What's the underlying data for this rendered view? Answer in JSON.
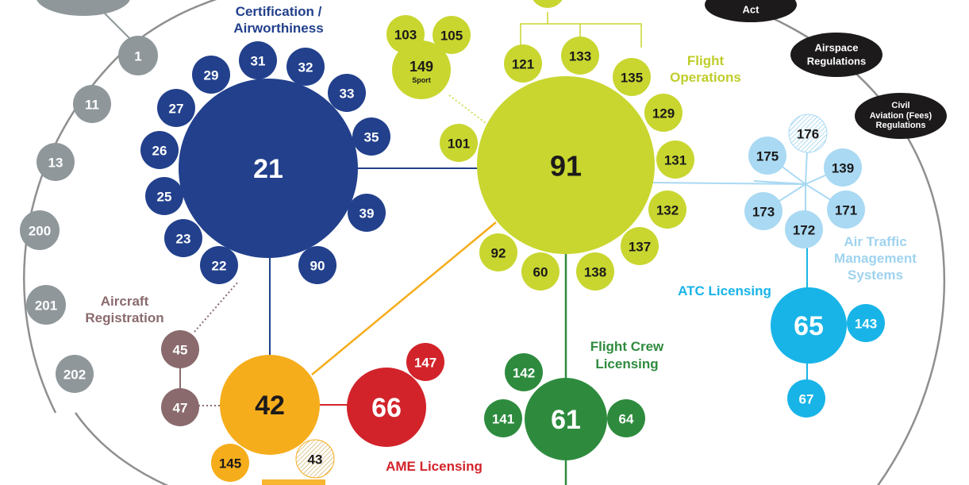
{
  "colors": {
    "outline": "#8f8f8f",
    "grey": "#8f979b",
    "certification": "#22408c",
    "flight_ops": "#c8d62f",
    "flight_ops_text": "#bfcd2a",
    "flight_crew": "#2e8b3e",
    "atc": "#18b4e8",
    "atm": "#a9d9f3",
    "atm_text": "#9fd3ef",
    "registration": "#8a6a6d",
    "orange": "#f6ad1b",
    "ame": "#d2232a",
    "black": "#1c1a1a"
  },
  "groups": {
    "certification": [
      "Certification /",
      "Airworthiness"
    ],
    "flight_ops": [
      "Flight",
      "Operations"
    ],
    "flight_crew": [
      "Flight Crew",
      "Licensing"
    ],
    "atc": "ATC Licensing",
    "atm": [
      "Air Traffic",
      "Management",
      "Systems"
    ],
    "registration": [
      "Aircraft",
      "Registration"
    ],
    "ame": "AME Licensing"
  },
  "acts": {
    "act": "Act",
    "airspace": [
      "Airspace",
      "Regulations"
    ],
    "fees": [
      "Civil",
      "Aviation (Fees)",
      "Regulations"
    ]
  },
  "parts": {
    "grey": [
      "1",
      "11",
      "13",
      "200",
      "201",
      "202"
    ],
    "certification": [
      "21",
      "31",
      "32",
      "33",
      "35",
      "39",
      "90",
      "22",
      "23",
      "25",
      "26",
      "27",
      "29"
    ],
    "flight_ops": [
      "91",
      "103",
      "105",
      "149",
      "121",
      "133",
      "135",
      "129",
      "131",
      "132",
      "137",
      "138",
      "60",
      "92",
      "101"
    ],
    "flight_ops_sub": {
      "149": "Sport"
    },
    "atm": [
      "176",
      "175",
      "139",
      "173",
      "171",
      "172"
    ],
    "atc": [
      "65",
      "143",
      "67"
    ],
    "registration": [
      "45",
      "47"
    ],
    "orange": [
      "42",
      "145",
      "43"
    ],
    "ame": [
      "66",
      "147"
    ],
    "flight_crew": [
      "61",
      "142",
      "141",
      "64"
    ]
  }
}
